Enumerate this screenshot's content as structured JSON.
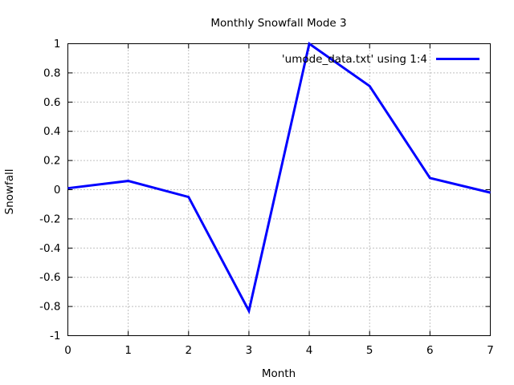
{
  "window": {
    "background": "#ffffff"
  },
  "chart_data": {
    "type": "line",
    "title": "Monthly Snowfall Mode 3",
    "xlabel": "Month",
    "ylabel": "Snowfall",
    "legend_label": "'umode_data.txt' using 1:4",
    "legend_position": "top-right-inside",
    "x": [
      0,
      1,
      2,
      3,
      4,
      5,
      6,
      7
    ],
    "series": [
      {
        "name": "'umode_data.txt' using 1:4",
        "values": [
          0.01,
          0.06,
          -0.05,
          -0.83,
          1.0,
          0.71,
          0.08,
          -0.02
        ],
        "color": "#0000ff",
        "line_width": 3
      }
    ],
    "xlim": [
      0,
      7
    ],
    "ylim": [
      -1,
      1
    ],
    "xticks": [
      "0",
      "1",
      "2",
      "3",
      "4",
      "5",
      "6",
      "7"
    ],
    "yticks": [
      "-1",
      "-0.8",
      "-0.6",
      "-0.4",
      "-0.2",
      "0",
      "0.2",
      "0.4",
      "0.6",
      "0.8",
      "1"
    ],
    "grid": true,
    "grid_color": "#808080",
    "axis_color": "#000000",
    "text_color": "#000000",
    "background": "#ffffff"
  }
}
